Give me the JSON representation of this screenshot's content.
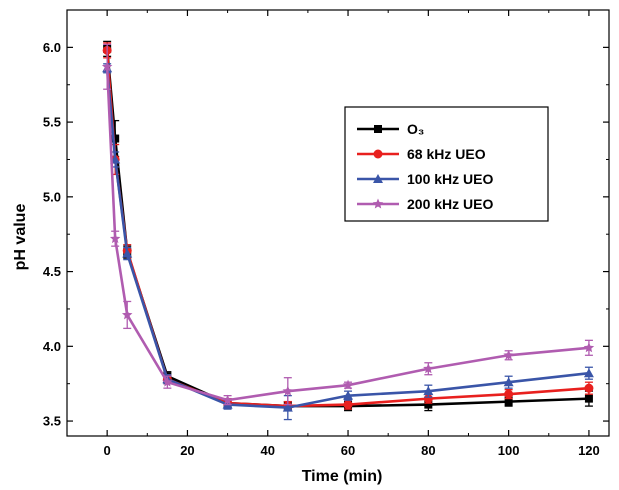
{
  "chart_data": {
    "type": "line",
    "title": "",
    "xlabel": "Time (min)",
    "ylabel": "pH value",
    "xlim": [
      -10,
      125
    ],
    "ylim": [
      3.4,
      6.25
    ],
    "xticks": [
      0,
      20,
      40,
      60,
      80,
      100,
      120
    ],
    "yticks": [
      3.5,
      4.0,
      4.5,
      5.0,
      5.5,
      6.0
    ],
    "xtick_labels": [
      "0",
      "20",
      "40",
      "60",
      "80",
      "100",
      "120"
    ],
    "ytick_labels": [
      "3.5",
      "4.0",
      "4.5",
      "5.0",
      "5.5",
      "6.0"
    ],
    "grid": false,
    "legend_position": "upper-right",
    "series": [
      {
        "name": "O₃",
        "color": "#000000",
        "marker": "square",
        "points": [
          {
            "x": 0,
            "y": 5.99,
            "err": 0.05
          },
          {
            "x": 2,
            "y": 5.39,
            "err": 0.12
          },
          {
            "x": 5,
            "y": 4.63,
            "err": 0.04
          },
          {
            "x": 15,
            "y": 3.8,
            "err": 0.03
          },
          {
            "x": 30,
            "y": 3.62,
            "err": 0.03
          },
          {
            "x": 45,
            "y": 3.6,
            "err": 0.03
          },
          {
            "x": 60,
            "y": 3.6,
            "err": 0.03
          },
          {
            "x": 80,
            "y": 3.61,
            "err": 0.04
          },
          {
            "x": 100,
            "y": 3.63,
            "err": 0.03
          },
          {
            "x": 120,
            "y": 3.65,
            "err": 0.05
          }
        ]
      },
      {
        "name": "68 kHz UEO",
        "color": "#e8201e",
        "marker": "circle",
        "points": [
          {
            "x": 0,
            "y": 5.98,
            "err": 0.05
          },
          {
            "x": 2,
            "y": 5.25,
            "err": 0.1
          },
          {
            "x": 5,
            "y": 4.64,
            "err": 0.04
          },
          {
            "x": 15,
            "y": 3.78,
            "err": 0.03
          },
          {
            "x": 30,
            "y": 3.62,
            "err": 0.03
          },
          {
            "x": 45,
            "y": 3.6,
            "err": 0.03
          },
          {
            "x": 60,
            "y": 3.61,
            "err": 0.03
          },
          {
            "x": 80,
            "y": 3.65,
            "err": 0.03
          },
          {
            "x": 100,
            "y": 3.68,
            "err": 0.03
          },
          {
            "x": 120,
            "y": 3.72,
            "err": 0.04
          }
        ]
      },
      {
        "name": "100 kHz UEO",
        "color": "#3a55a8",
        "marker": "triangle",
        "points": [
          {
            "x": 0,
            "y": 5.86,
            "err": 0.03
          },
          {
            "x": 2,
            "y": 5.25,
            "err": 0.05
          },
          {
            "x": 5,
            "y": 4.62,
            "err": 0.04
          },
          {
            "x": 15,
            "y": 3.78,
            "err": 0.03
          },
          {
            "x": 30,
            "y": 3.61,
            "err": 0.03
          },
          {
            "x": 45,
            "y": 3.59,
            "err": 0.08
          },
          {
            "x": 60,
            "y": 3.67,
            "err": 0.03
          },
          {
            "x": 80,
            "y": 3.7,
            "err": 0.04
          },
          {
            "x": 100,
            "y": 3.76,
            "err": 0.04
          },
          {
            "x": 120,
            "y": 3.82,
            "err": 0.04
          }
        ]
      },
      {
        "name": "200 kHz UEO",
        "color": "#b05cb0",
        "marker": "star",
        "points": [
          {
            "x": 0,
            "y": 5.87,
            "err": 0.15
          },
          {
            "x": 2,
            "y": 4.72,
            "err": 0.05
          },
          {
            "x": 5,
            "y": 4.21,
            "err": 0.09
          },
          {
            "x": 15,
            "y": 3.76,
            "err": 0.04
          },
          {
            "x": 30,
            "y": 3.64,
            "err": 0.03
          },
          {
            "x": 45,
            "y": 3.7,
            "err": 0.09
          },
          {
            "x": 60,
            "y": 3.74,
            "err": 0.02
          },
          {
            "x": 80,
            "y": 3.85,
            "err": 0.04
          },
          {
            "x": 100,
            "y": 3.94,
            "err": 0.03
          },
          {
            "x": 120,
            "y": 3.99,
            "err": 0.05
          }
        ]
      }
    ]
  }
}
